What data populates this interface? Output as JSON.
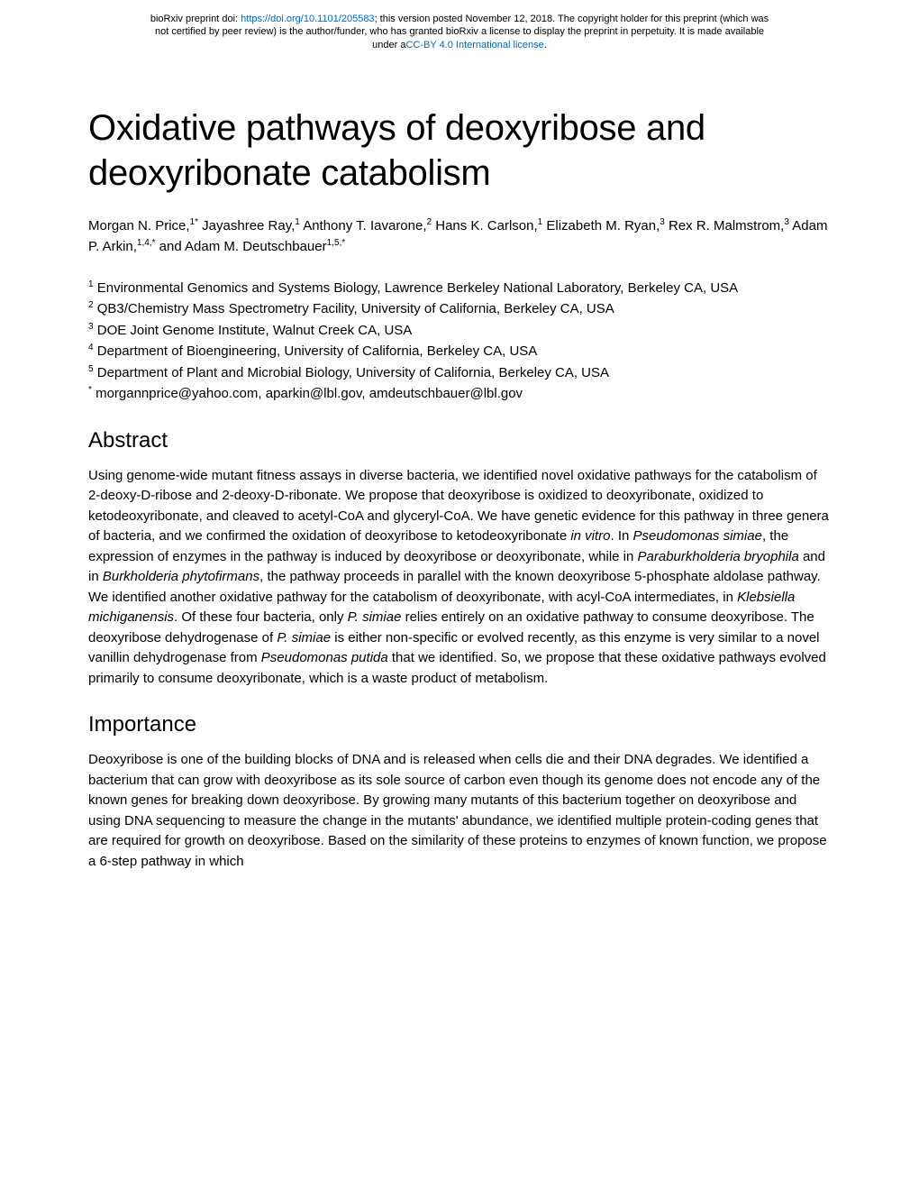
{
  "preprint": {
    "line1_prefix": "bioRxiv preprint doi: ",
    "doi_url": "https://doi.org/10.1101/205583",
    "line1_suffix": "; this version posted November 12, 2018. The copyright holder for this preprint (which was",
    "line2": "not certified by peer review) is the author/funder, who has granted bioRxiv a license to display the preprint in perpetuity. It is made available",
    "line3_prefix": "under a",
    "license_link": "CC-BY 4.0 International license",
    "line3_suffix": "."
  },
  "title": "Oxidative pathways of deoxyribose and deoxyribonate catabolism",
  "authors": {
    "a1": "Morgan N. Price,",
    "s1": "1*",
    "a2": " Jayashree Ray,",
    "s2": "1",
    "a3": " Anthony T. Iavarone,",
    "s3": "2",
    "a4": " Hans K. Carlson,",
    "s4": "1",
    "a5": " Elizabeth M. Ryan,",
    "s5": "3",
    "a6": " Rex R. Malmstrom,",
    "s6": "3",
    "a7": " Adam P. Arkin,",
    "s7": "1,4,*",
    "a8": " and Adam M. Deutschbauer",
    "s8": "1,5,*"
  },
  "affiliations": {
    "n1": "1",
    "t1": " Environmental Genomics and Systems Biology, Lawrence Berkeley National Laboratory, Berkeley CA, USA",
    "n2": "2",
    "t2": " QB3/Chemistry Mass Spectrometry Facility, University of California, Berkeley CA, USA",
    "n3": "3",
    "t3": " DOE Joint Genome Institute, Walnut Creek CA, USA",
    "n4": "4",
    "t4": " Department of Bioengineering, University of California, Berkeley CA, USA",
    "n5": "5",
    "t5": " Department of Plant and Microbial Biology, University of California, Berkeley CA, USA",
    "n6": "*",
    "t6": " morgannprice@yahoo.com, aparkin@lbl.gov, amdeutschbauer@lbl.gov"
  },
  "abstract_heading": "Abstract",
  "abstract": {
    "p1a": "Using genome-wide mutant fitness assays in diverse bacteria, we identified novel oxidative pathways for the catabolism of 2-deoxy-D-ribose and 2-deoxy-D-ribonate. We propose that deoxyribose is oxidized to deoxyribonate, oxidized to ketodeoxyribonate, and cleaved to acetyl-CoA and glyceryl-CoA.  We have genetic evidence for this pathway in three genera of bacteria, and we confirmed the oxidation of deoxyribose to ketodeoxyribonate ",
    "i1": "in vitro",
    "p1b": ". In ",
    "i2": "Pseudomonas simiae",
    "p1c": ", the expression of enzymes in the pathway is induced by deoxyribose or deoxyribonate, while in ",
    "i3": "Paraburkholderia bryophila",
    "p1d": " and in ",
    "i4": "Burkholderia phytofirmans",
    "p1e": ", the pathway proceeds in parallel with the known deoxyribose 5-phosphate aldolase pathway. We identified another oxidative pathway for the catabolism of deoxyribonate, with acyl-CoA intermediates, in ",
    "i5": "Klebsiella michiganensis",
    "p1f": ". Of these four bacteria, only ",
    "i6": "P. simiae",
    "p1g": " relies entirely on an oxidative pathway to consume deoxyribose. The deoxyribose dehydrogenase of ",
    "i7": "P. simiae",
    "p1h": " is either non-specific or evolved recently, as this enzyme is very similar to a novel vanillin dehydrogenase from ",
    "i8": "Pseudomonas putida",
    "p1i": " that we identified. So, we propose that these oxidative pathways evolved primarily to consume deoxyribonate, which is a waste product of metabolism."
  },
  "importance_heading": "Importance",
  "importance": {
    "p1": "Deoxyribose is one of the building blocks of DNA and is released when cells die and their DNA degrades. We identified a bacterium that can grow with deoxyribose as its sole source of carbon even though its genome does not encode any of the known genes for breaking down deoxyribose. By growing many mutants of this bacterium together on deoxyribose and using DNA sequencing to measure the change in the mutants' abundance, we identified multiple protein-coding genes that are required for growth on deoxyribose. Based on the similarity of these proteins to enzymes of known function, we propose a 6-step pathway in which"
  }
}
